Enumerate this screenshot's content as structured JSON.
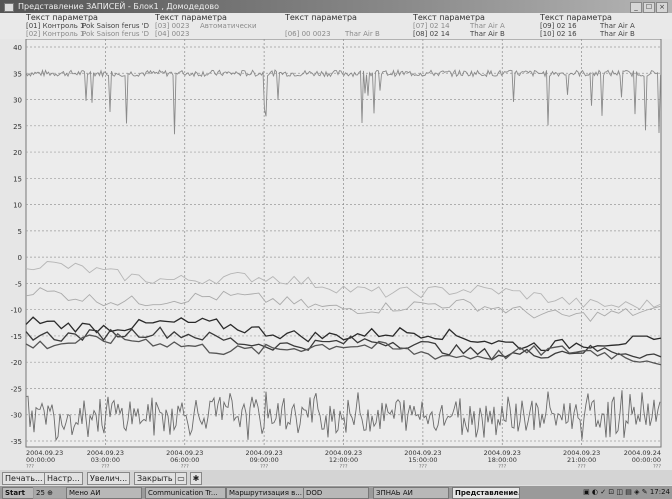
{
  "window": {
    "title": "Представление ЗАПИСЕЙ - Блок1 , Домодедово",
    "buttons": [
      "_",
      "☐",
      "×"
    ]
  },
  "legend": {
    "columns": [
      {
        "header": "Текст параметра",
        "lines": [
          "[01] Контроль 1",
          "[02] Контроль 1"
        ]
      },
      {
        "header": "",
        "lines": [
          "Pok Saison ferus 'D",
          "Pok Saison ferus 'D"
        ]
      },
      {
        "header": "Текст параметра",
        "lines": [
          "[03] 0023",
          "[04] 0023"
        ]
      },
      {
        "header": "",
        "lines": [
          "Автоматически",
          ""
        ]
      },
      {
        "header": "Текст параметра",
        "lines": [
          "",
          "[06] 00 0023"
        ]
      },
      {
        "header": "",
        "lines": [
          "",
          "Thar Air B"
        ]
      },
      {
        "header": "Текст параметра",
        "lines": [
          "[07] 02 14",
          "[08] 02 14"
        ]
      },
      {
        "header": "",
        "lines": [
          "Thar Air A",
          "Thar Air B"
        ]
      },
      {
        "header": "Текст параметра",
        "lines": [
          "[09] 02 16",
          "[10] 02 16"
        ]
      },
      {
        "header": "",
        "lines": [
          "Thar Air A",
          "Thar Air B"
        ]
      }
    ]
  },
  "chart_data": {
    "type": "line",
    "ylim": [
      -35,
      40
    ],
    "yticks": [
      "40",
      "35",
      "30",
      "25",
      "20",
      "15",
      "10",
      "5",
      "0",
      "-5",
      "-10",
      "-15",
      "-20",
      "-25",
      "-30",
      "-35"
    ],
    "xlabels": [
      {
        "date": "2004.09.23",
        "time": "03:00:00",
        "sub": "???"
      },
      {
        "date": "2004.09.23",
        "time": "06:00:00",
        "sub": "???"
      },
      {
        "date": "2004.09.23",
        "time": "09:00:00",
        "sub": "???"
      },
      {
        "date": "2004.09.23",
        "time": "12:00:00",
        "sub": "???"
      },
      {
        "date": "2004.09.23",
        "time": "15:00:00",
        "sub": "???"
      },
      {
        "date": "2004.09.23",
        "time": "18:00:00",
        "sub": "???"
      },
      {
        "date": "2004.09.23",
        "time": "21:00:00",
        "sub": "???"
      },
      {
        "date": "2004.09.24",
        "time": "00:00:00",
        "sub": "???"
      }
    ],
    "x_first_label": {
      "date": "2004.09.23",
      "time": "03:00:00",
      "sub": "???"
    },
    "x_left_label": {
      "date": "2004.09.23",
      "time": "00:00:00",
      "sub": "???"
    },
    "grid": "dashed",
    "series": [
      {
        "color": "#8a8a8a",
        "role": "upper-noise",
        "baseline": 35,
        "min_spikes": 25
      },
      {
        "color": "#b5b5b5",
        "role": "light-mid",
        "start": -2,
        "end": -9
      },
      {
        "color": "#aaaaaa",
        "role": "light-mid-2",
        "start": -7,
        "end": -11
      },
      {
        "color": "#2a2a2a",
        "role": "dark-1",
        "start": -12,
        "end": -17
      },
      {
        "color": "#3a3a3a",
        "role": "dark-2",
        "start": -14,
        "end": -19
      },
      {
        "color": "#555555",
        "role": "dark-3",
        "start": -16,
        "end": -19
      },
      {
        "color": "#6a6a6a",
        "role": "bottom-noise",
        "baseline": -30,
        "amp": 5
      }
    ]
  },
  "bottombar": {
    "buttons": [
      "Печать...",
      "Настр...",
      "Увелич...",
      "Закрыть"
    ],
    "icons": [
      "page-icon",
      "settings-icon"
    ]
  },
  "taskbar": {
    "start": "Start",
    "quick": "25 ⊕",
    "items": [
      "Мено АИ",
      "Communication Tr...",
      "Маршрутизация в...",
      "DOD",
      "ЗПНАЬ АИ",
      "Представление..."
    ],
    "active_index": 5,
    "tray_time": "17:24"
  }
}
